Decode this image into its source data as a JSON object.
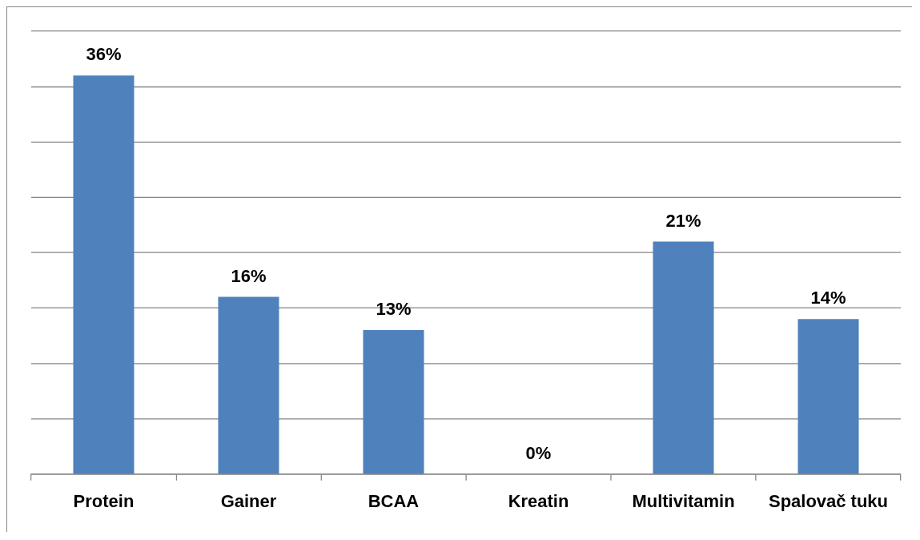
{
  "chart_data": {
    "type": "bar",
    "categories": [
      "Protein",
      "Gainer",
      "BCAA",
      "Kreatin",
      "Multivitamin",
      "Spalovač tuku"
    ],
    "values": [
      36,
      16,
      13,
      0,
      21,
      14
    ],
    "value_labels": [
      "36%",
      "16%",
      "13%",
      "0%",
      "21%",
      "14%"
    ],
    "color": "#4f81bd",
    "ylim": [
      0,
      40
    ],
    "yticks": [
      {
        "value": 0,
        "label": null
      },
      {
        "value": 5,
        "label": null
      },
      {
        "value": 10,
        "label": null
      },
      {
        "value": 15,
        "label": null
      },
      {
        "value": 20,
        "label": null
      },
      {
        "value": 25,
        "label": null
      },
      {
        "value": 30,
        "label": null
      },
      {
        "value": 35,
        "label": null
      },
      {
        "value": 40,
        "label": null
      }
    ],
    "tick_labels": "x",
    "grid": "y",
    "legend": false
  }
}
